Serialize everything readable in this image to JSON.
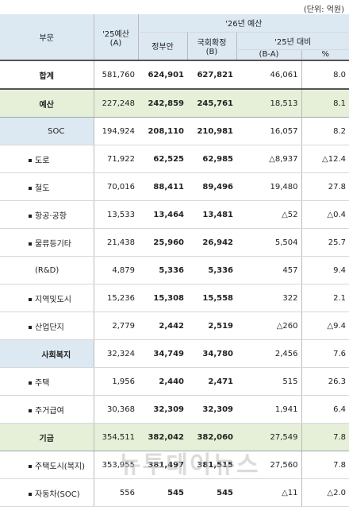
{
  "unit_note": "(단위: 억원)",
  "header": {
    "col_category": "부문",
    "col_2025_line1": "'25예산",
    "col_2025_line2": "(A)",
    "col_2026": "'26년 예산",
    "col_gov": "정부안",
    "col_final_line1": "국회확정",
    "col_final_line2": "(B)",
    "col_vs2025": "'25년 대비",
    "col_diff": "(B-A)",
    "col_pct": "%"
  },
  "rows": [
    {
      "label": "합계",
      "a": "581,760",
      "gov": "624,901",
      "b": "627,821",
      "diff": "46,061",
      "pct": "8.0",
      "style": "total"
    },
    {
      "label": "예산",
      "a": "227,248",
      "gov": "242,859",
      "b": "245,761",
      "diff": "18,513",
      "pct": "8.1",
      "style": "group"
    },
    {
      "label": "SOC",
      "a": "194,924",
      "gov": "208,110",
      "b": "210,981",
      "diff": "16,057",
      "pct": "8.2",
      "style": "sub-blue"
    },
    {
      "label": "도로",
      "a": "71,922",
      "gov": "62,525",
      "b": "62,985",
      "diff": "△8,937",
      "pct": "△12.4",
      "style": "bullet"
    },
    {
      "label": "철도",
      "a": "70,016",
      "gov": "88,411",
      "b": "89,496",
      "diff": "19,480",
      "pct": "27.8",
      "style": "bullet"
    },
    {
      "label": "항공·공항",
      "a": "13,533",
      "gov": "13,464",
      "b": "13,481",
      "diff": "△52",
      "pct": "△0.4",
      "style": "bullet"
    },
    {
      "label": "물류등기타",
      "a": "21,438",
      "gov": "25,960",
      "b": "26,942",
      "diff": "5,504",
      "pct": "25.7",
      "style": "bullet"
    },
    {
      "label": "(R&D)",
      "a": "4,879",
      "gov": "5,336",
      "b": "5,336",
      "diff": "457",
      "pct": "9.4",
      "style": "plain"
    },
    {
      "label": "지역및도시",
      "a": "15,236",
      "gov": "15,308",
      "b": "15,558",
      "diff": "322",
      "pct": "2.1",
      "style": "bullet"
    },
    {
      "label": "산업단지",
      "a": "2,779",
      "gov": "2,442",
      "b": "2,519",
      "diff": "△260",
      "pct": "△9.4",
      "style": "bullet"
    },
    {
      "label": "사회복지",
      "a": "32,324",
      "gov": "34,749",
      "b": "34,780",
      "diff": "2,456",
      "pct": "7.6",
      "style": "sub-blue"
    },
    {
      "label": "주택",
      "a": "1,956",
      "gov": "2,440",
      "b": "2,471",
      "diff": "515",
      "pct": "26.3",
      "style": "bullet"
    },
    {
      "label": "주거급여",
      "a": "30,368",
      "gov": "32,309",
      "b": "32,309",
      "diff": "1,941",
      "pct": "6.4",
      "style": "bullet"
    },
    {
      "label": "기금",
      "a": "354,511",
      "gov": "382,042",
      "b": "382,060",
      "diff": "27,549",
      "pct": "7.8",
      "style": "group"
    },
    {
      "label": "주택도시(복지)",
      "a": "353,955",
      "gov": "381,497",
      "b": "381,515",
      "diff": "27,560",
      "pct": "7.8",
      "style": "bullet"
    },
    {
      "label": "자동차(SOC)",
      "a": "556",
      "gov": "545",
      "b": "545",
      "diff": "△11",
      "pct": "△2.0",
      "style": "bullet"
    }
  ],
  "watermark": "뉴투데이뉴스"
}
